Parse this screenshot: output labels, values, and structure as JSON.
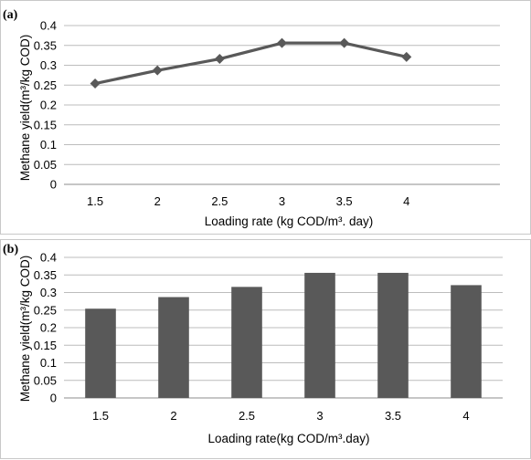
{
  "chart_data": [
    {
      "panel_label": "(a)",
      "type": "line",
      "categories": [
        "1.5",
        "2",
        "2.5",
        "3",
        "3.5",
        "4"
      ],
      "values": [
        0.254,
        0.287,
        0.316,
        0.356,
        0.356,
        0.321
      ],
      "y_ticks": [
        "0",
        "0.05",
        "0.1",
        "0.15",
        "0.2",
        "0.25",
        "0.3",
        "0.35",
        "0.4"
      ],
      "xlabel": "Loading rate (kg COD/m³. day)",
      "ylabel": "Methane yield(m³/kg COD)",
      "ylim": [
        0,
        0.4
      ],
      "grid": "horizontal",
      "marker": "diamond",
      "color": "#595959"
    },
    {
      "panel_label": "(b)",
      "type": "bar",
      "categories": [
        "1.5",
        "2",
        "2.5",
        "3",
        "3.5",
        "4"
      ],
      "values": [
        0.254,
        0.287,
        0.316,
        0.356,
        0.356,
        0.321
      ],
      "y_ticks": [
        "0",
        "0.05",
        "0.1",
        "0.15",
        "0.2",
        "0.25",
        "0.3",
        "0.35",
        "0.4"
      ],
      "xlabel": "Loading rate(kg COD/m³.day)",
      "ylabel": "Methane yield(m³/kg COD)",
      "ylim": [
        0,
        0.4
      ],
      "grid": "horizontal",
      "color": "#595959"
    }
  ]
}
